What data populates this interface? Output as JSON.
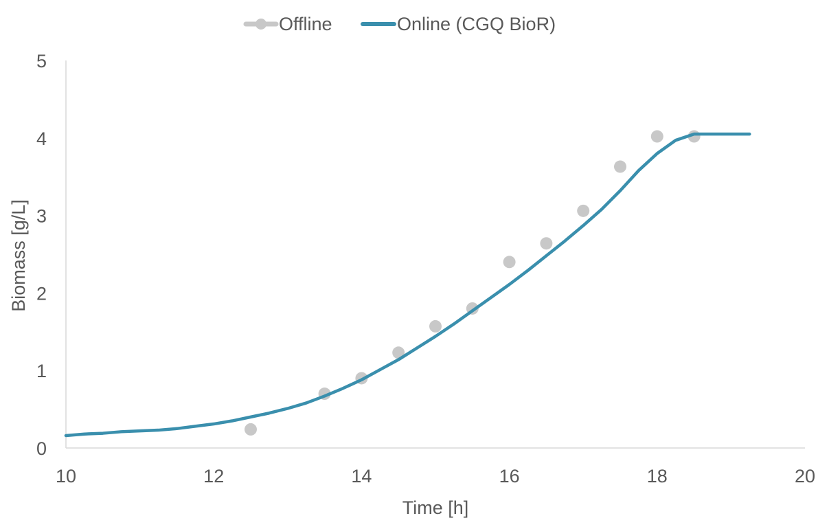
{
  "chart_data": {
    "type": "scatter",
    "title": "",
    "xlabel": "Time [h]",
    "ylabel": "Biomass [g/L]",
    "xlim": [
      10,
      20
    ],
    "ylim": [
      0,
      5
    ],
    "x_ticks": [
      10,
      12,
      14,
      16,
      18,
      20
    ],
    "y_ticks": [
      0,
      1,
      2,
      3,
      4,
      5
    ],
    "x_tick_labels": [
      "10",
      "12",
      "14",
      "16",
      "18",
      "20"
    ],
    "y_tick_labels": [
      "0",
      "1",
      "2",
      "3",
      "4",
      "5"
    ],
    "grid": false,
    "legend": "top-center",
    "series": [
      {
        "name": "Offline",
        "kind": "markers",
        "color": "#c8c8c8",
        "x": [
          12.5,
          13.5,
          14.0,
          14.5,
          15.0,
          15.5,
          16.0,
          16.5,
          17.0,
          17.5,
          18.0,
          18.5
        ],
        "y": [
          0.24,
          0.7,
          0.9,
          1.23,
          1.57,
          1.8,
          2.4,
          2.64,
          3.06,
          3.63,
          4.02,
          4.02
        ]
      },
      {
        "name": "Online (CGQ BioR)",
        "kind": "line",
        "color": "#3a8fad",
        "x": [
          10.0,
          10.25,
          10.5,
          10.75,
          11.0,
          11.25,
          11.5,
          11.75,
          12.0,
          12.25,
          12.5,
          12.75,
          13.0,
          13.25,
          13.5,
          13.75,
          14.0,
          14.25,
          14.5,
          14.75,
          15.0,
          15.25,
          15.5,
          15.75,
          16.0,
          16.25,
          16.5,
          16.75,
          17.0,
          17.25,
          17.5,
          17.75,
          18.0,
          18.25,
          18.5,
          18.75,
          19.0,
          19.25
        ],
        "y": [
          0.16,
          0.18,
          0.19,
          0.21,
          0.22,
          0.23,
          0.25,
          0.28,
          0.31,
          0.35,
          0.4,
          0.45,
          0.51,
          0.58,
          0.67,
          0.77,
          0.88,
          1.01,
          1.14,
          1.29,
          1.44,
          1.6,
          1.77,
          1.94,
          2.11,
          2.29,
          2.48,
          2.67,
          2.87,
          3.08,
          3.32,
          3.58,
          3.8,
          3.97,
          4.05,
          4.05,
          4.05,
          4.05
        ]
      }
    ]
  }
}
